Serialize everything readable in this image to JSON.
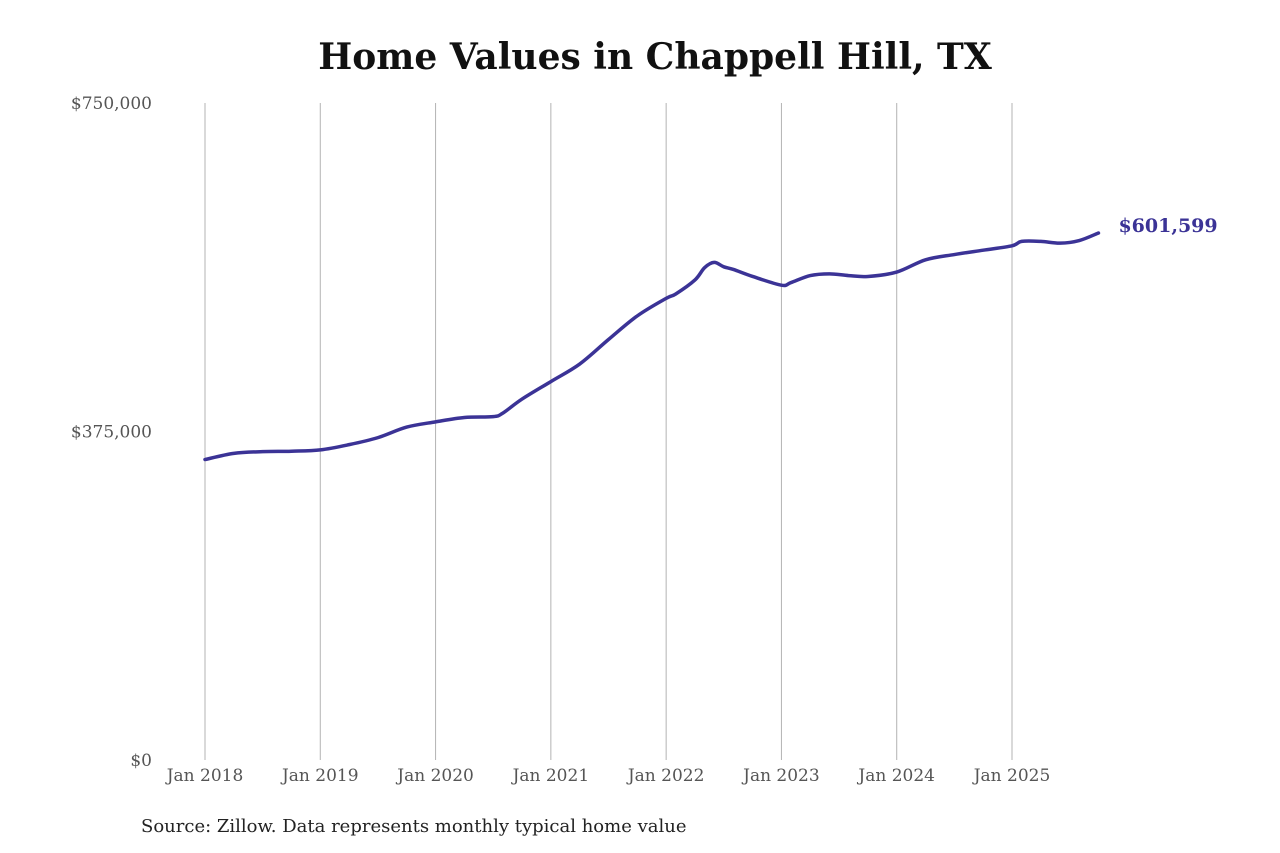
{
  "chart_data": {
    "type": "line",
    "title": "Home Values in Chappell Hill, TX",
    "xlabel": "",
    "ylabel": "",
    "ylim": [
      0,
      750000
    ],
    "xlim": [
      "2018-01",
      "2025-10"
    ],
    "y_tick_labels": [
      "$0",
      "$375,000",
      "$750,000"
    ],
    "y_tick_values": [
      0,
      375000,
      750000
    ],
    "x_tick_labels": [
      "Jan 2018",
      "Jan 2019",
      "Jan 2020",
      "Jan 2021",
      "Jan 2022",
      "Jan 2023",
      "Jan 2024",
      "Jan 2025"
    ],
    "x_tick_values": [
      "2018-01",
      "2019-01",
      "2020-01",
      "2021-01",
      "2022-01",
      "2023-01",
      "2024-01",
      "2025-01"
    ],
    "grid": "vertical",
    "legend": "none",
    "end_label": "$601,599",
    "series": [
      {
        "color": "#3b3396",
        "x": [
          "2018-01",
          "2018-04",
          "2018-07",
          "2018-10",
          "2019-01",
          "2019-04",
          "2019-07",
          "2019-10",
          "2020-01",
          "2020-04",
          "2020-07",
          "2020-08",
          "2020-10",
          "2021-01",
          "2021-04",
          "2021-07",
          "2021-10",
          "2022-01",
          "2022-02",
          "2022-04",
          "2022-05",
          "2022-06",
          "2022-07",
          "2022-08",
          "2022-10",
          "2023-01",
          "2023-02",
          "2023-04",
          "2023-06",
          "2023-08",
          "2023-10",
          "2024-01",
          "2024-04",
          "2024-07",
          "2024-10",
          "2025-01",
          "2025-02",
          "2025-04",
          "2025-06",
          "2025-08",
          "2025-10"
        ],
        "y": [
          343000,
          350000,
          352000,
          352500,
          354000,
          360000,
          368000,
          380000,
          386000,
          391000,
          392000,
          396000,
          412000,
          432000,
          452000,
          480000,
          507000,
          527000,
          532000,
          548000,
          562000,
          568000,
          563000,
          560000,
          552000,
          542000,
          545000,
          553000,
          555000,
          553000,
          552000,
          557000,
          571000,
          577000,
          582000,
          587000,
          592000,
          592000,
          590000,
          593000,
          601599
        ]
      }
    ]
  },
  "source_note": "Source: Zillow. Data represents monthly typical home value"
}
